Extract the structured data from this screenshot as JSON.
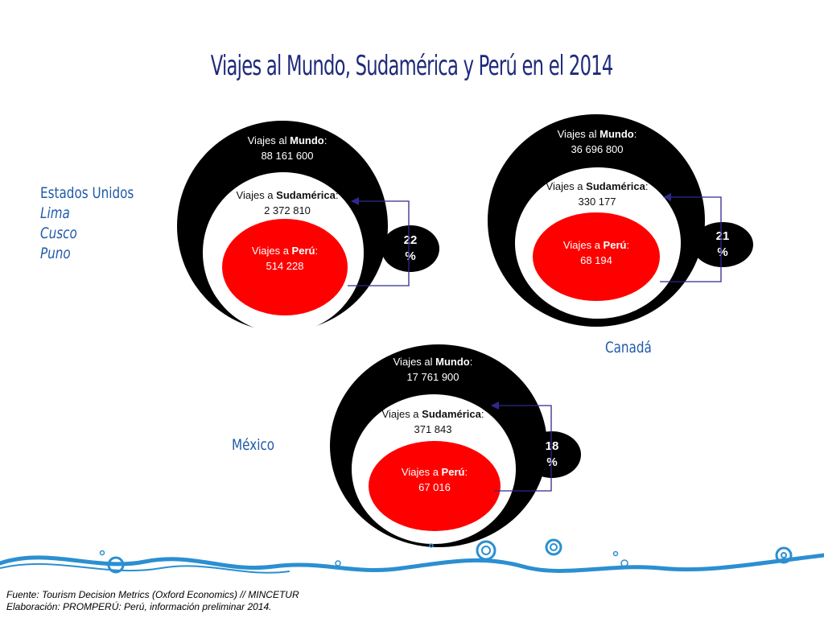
{
  "title": "Viajes al Mundo, Sudamérica y Perú en el 2014",
  "markets": [
    {
      "name_lines": [
        "Estados Unidos"
      ],
      "cities": [
        "Lima",
        "Cusco",
        "Puno"
      ],
      "mundo_prefix": "Viajes al ",
      "mundo_bold": "Mundo",
      "mundo_value": "88 161 600",
      "sud_prefix": "Viajes a ",
      "sud_bold": "Sudamérica",
      "sud_value": "2 372 810",
      "peru_prefix": "Viajes a ",
      "peru_bold": "Perú",
      "peru_value": "514 228",
      "pct_num": "22",
      "pct_sym": "%"
    },
    {
      "name_lines": [
        "Canadá"
      ],
      "mundo_prefix": "Viajes al ",
      "mundo_bold": "Mundo",
      "mundo_value": "36 696 800",
      "sud_prefix": "Viajes a ",
      "sud_bold": "Sudamérica",
      "sud_value": "330 177",
      "peru_prefix": "Viajes a ",
      "peru_bold": "Perú",
      "peru_value": "68 194",
      "pct_num": "21",
      "pct_sym": "%"
    },
    {
      "name_lines": [
        "México"
      ],
      "mundo_prefix": "Viajes al ",
      "mundo_bold": "Mundo",
      "mundo_value": "17 761 900",
      "sud_prefix": "Viajes a ",
      "sud_bold": "Sudamérica",
      "sud_value": "371 843",
      "peru_prefix": "Viajes a ",
      "peru_bold": "Perú",
      "peru_value": "67 016",
      "pct_num": "18",
      "pct_sym": "%"
    }
  ],
  "colors": {
    "title": "#1f2a7a",
    "accent": "#1f5aa8",
    "peru_circle": "#ff0000",
    "connector": "#2e2a8c"
  },
  "footer": {
    "line1": "Fuente: Tourism Decision Metrics (Oxford Economics) // MINCETUR",
    "line2": "Elaboración: PROMPERÚ: Perú, información preliminar 2014."
  }
}
